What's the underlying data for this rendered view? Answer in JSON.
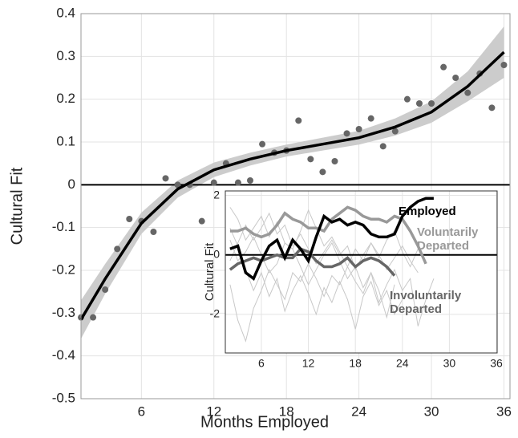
{
  "chart_data": [
    {
      "type": "scatter",
      "x_label": "Months Employed",
      "y_label": "Cultural Fit",
      "x": [
        1,
        2,
        3,
        4,
        5,
        6,
        7,
        8,
        9,
        10,
        11,
        12,
        13,
        14,
        15,
        16,
        17,
        18,
        19,
        20,
        21,
        22,
        23,
        24,
        25,
        26,
        27,
        28,
        29,
        30,
        31,
        32,
        33,
        34,
        35,
        36
      ],
      "values": [
        -0.31,
        -0.31,
        -0.245,
        -0.15,
        -0.08,
        -0.085,
        -0.11,
        0.015,
        0,
        0,
        -0.085,
        0.005,
        0.05,
        0.005,
        0.01,
        0.095,
        0.075,
        0.08,
        0.15,
        0.06,
        0.03,
        0.055,
        0.12,
        0.13,
        0.155,
        0.09,
        0.125,
        0.2,
        0.19,
        0.19,
        0.275,
        0.25,
        0.215,
        0.26,
        0.18,
        0.28
      ],
      "color": "#666666",
      "fit": {
        "x": [
          1,
          3,
          6,
          9,
          12,
          15,
          18,
          21,
          24,
          27,
          30,
          33,
          36
        ],
        "y": [
          -0.315,
          -0.22,
          -0.09,
          -0.01,
          0.035,
          0.06,
          0.08,
          0.095,
          0.11,
          0.135,
          0.17,
          0.23,
          0.31
        ],
        "lower": [
          -0.36,
          -0.255,
          -0.115,
          -0.03,
          0.018,
          0.045,
          0.066,
          0.08,
          0.094,
          0.115,
          0.145,
          0.195,
          0.25
        ],
        "upper": [
          -0.27,
          -0.185,
          -0.065,
          0.01,
          0.052,
          0.075,
          0.094,
          0.11,
          0.126,
          0.155,
          0.195,
          0.265,
          0.37
        ],
        "color": "#000000",
        "band_color": "#cccccc"
      },
      "xlim": [
        1,
        36.5
      ],
      "xticks": [
        6,
        12,
        18,
        24,
        30,
        36
      ],
      "ylim": [
        -0.5,
        0.4
      ],
      "yticks": [
        -0.5,
        -0.4,
        -0.3,
        -0.2,
        -0.1,
        0,
        0.1,
        0.2,
        0.3,
        0.4
      ],
      "grid": true
    },
    {
      "type": "line",
      "y_label": "Cultural Fit",
      "x": [
        2,
        3,
        4,
        5,
        6,
        7,
        8,
        9,
        10,
        11,
        12,
        13,
        14,
        15,
        16,
        17,
        18,
        19,
        20,
        21,
        22,
        23,
        24,
        25,
        26,
        27,
        28
      ],
      "series": [
        {
          "name": "Employed",
          "color": "#000000",
          "values": [
            0.2,
            0.3,
            -0.6,
            -0.8,
            -0.2,
            0.3,
            0.5,
            -0.1,
            0.5,
            0.2,
            -0.2,
            0.6,
            1.3,
            1.1,
            1.2,
            1.0,
            1.1,
            1.0,
            0.7,
            0.6,
            0.6,
            0.7,
            1.3,
            1.6,
            1.8,
            1.9,
            1.9
          ]
        },
        {
          "name": "Voluntarily Departed",
          "color": "#999999",
          "values": [
            0.8,
            0.8,
            0.9,
            0.7,
            0.6,
            0.7,
            1.0,
            1.4,
            1.2,
            1.1,
            0.9,
            0.9,
            0.8,
            1.2,
            1.4,
            1.6,
            1.5,
            1.3,
            1.2,
            1.2,
            1.1,
            1.3,
            1.2,
            0.8,
            0.3,
            -0.3,
            null
          ]
        },
        {
          "name": "Involuntarily Departed",
          "color": "#666666",
          "values": [
            -0.5,
            -0.3,
            -0.2,
            -0.1,
            -0.2,
            -0.1,
            0.0,
            -0.1,
            -0.1,
            0.2,
            0.1,
            -0.2,
            -0.4,
            -0.4,
            -0.3,
            -0.1,
            -0.4,
            -0.2,
            -0.1,
            -0.2,
            -0.4,
            -0.7,
            null,
            null,
            null,
            null,
            null
          ]
        }
      ],
      "background_lines": [
        [
          1.6,
          1.2,
          0.5,
          0.9,
          1.3,
          0.6,
          1.1,
          0.4,
          0.2,
          0.8,
          1.5,
          0.9,
          0.3,
          0.6,
          0.1,
          -0.4,
          0.2,
          -0.2,
          0.4,
          0.0,
          -0.5,
          -0.1,
          0.3,
          -0.2,
          -0.6,
          null,
          null
        ],
        [
          -1.0,
          -2.2,
          -2.9,
          -1.8,
          -1.2,
          -0.5,
          -1.0,
          -1.5,
          -0.6,
          -0.9,
          -0.3,
          -0.8,
          -1.4,
          -0.7,
          -1.0,
          -0.4,
          -0.9,
          -1.3,
          -0.6,
          -1.2,
          -2.1,
          -1.0,
          null,
          null,
          null,
          null,
          null
        ],
        [
          0.5,
          -0.2,
          0.1,
          0.6,
          0.0,
          -0.6,
          -0.3,
          0.4,
          0.2,
          -0.4,
          -1.0,
          -0.5,
          0.0,
          0.4,
          -0.2,
          -0.8,
          -0.4,
          -1.1,
          -0.6,
          -1.6,
          -1.0,
          -0.5,
          -1.2,
          -0.8,
          -2.4,
          -1.5,
          -0.8
        ],
        [
          -0.2,
          0.4,
          1.0,
          0.5,
          0.9,
          1.4,
          0.7,
          1.0,
          0.3,
          0.7,
          0.2,
          -0.3,
          0.1,
          0.5,
          0.0,
          0.3,
          -0.5,
          0.0,
          0.4,
          -0.1,
          0.5,
          0.8,
          0.1,
          -0.4,
          0.2,
          -0.2,
          null
        ],
        [
          0.9,
          0.3,
          -0.5,
          -1.2,
          -0.6,
          -1.4,
          -0.8,
          -1.9,
          -1.2,
          -0.7,
          -1.3,
          -2.0,
          -1.1,
          -1.6,
          -0.9,
          -1.5,
          -2.5,
          -1.4,
          -0.9,
          -1.7,
          -1.2,
          -2.0,
          -1.5,
          null,
          null,
          null,
          null
        ]
      ],
      "background_color": "#c8c8c8",
      "xlim": [
        1.4,
        36.1
      ],
      "xticks": [
        6,
        12,
        18,
        24,
        30,
        36
      ],
      "ylim": [
        -3.3,
        2.15
      ],
      "yticks": [
        -2,
        0,
        2
      ],
      "grid": true
    }
  ]
}
